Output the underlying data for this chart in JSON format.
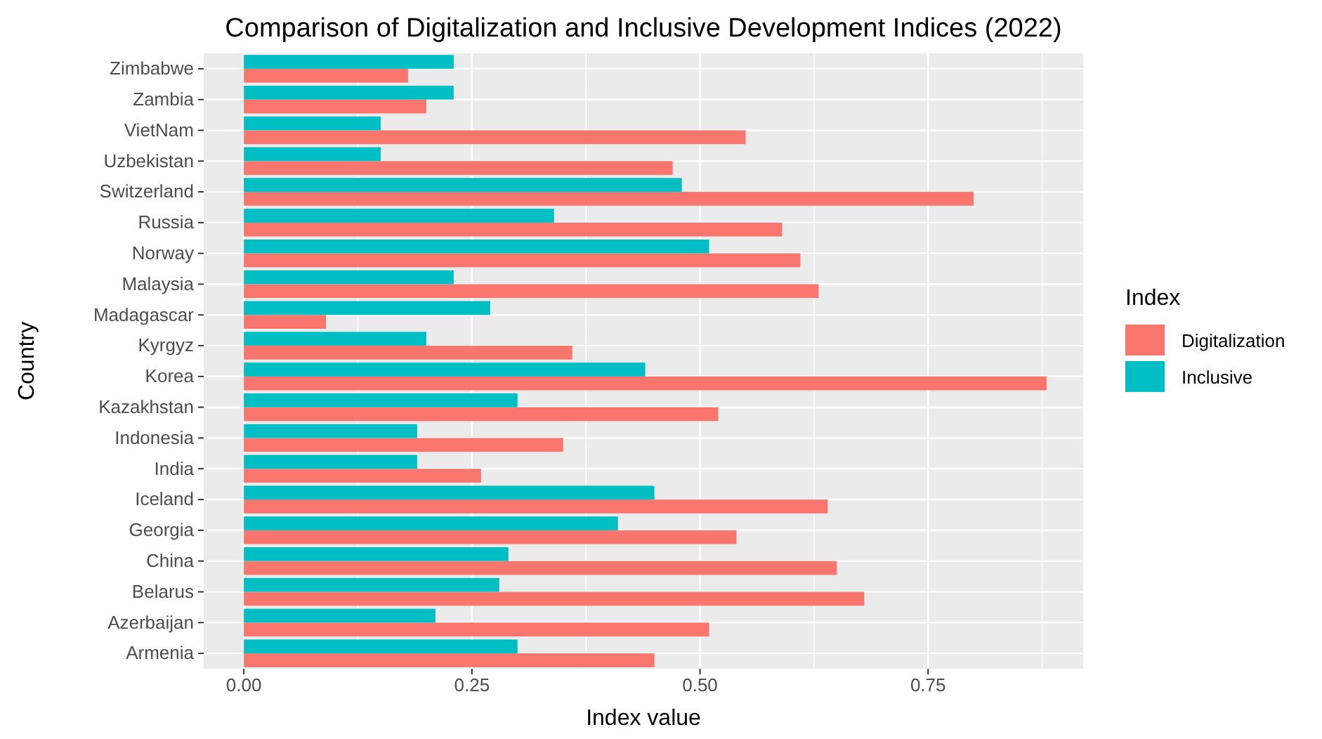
{
  "chart_data": {
    "type": "bar",
    "orientation": "horizontal",
    "title": "Comparison of Digitalization and Inclusive Development Indices (2022)",
    "xlabel": "Index value",
    "ylabel": "Country",
    "legend_title": "Index",
    "legend": "right",
    "grid": true,
    "categories": [
      "Zimbabwe",
      "Zambia",
      "VietNam",
      "Uzbekistan",
      "Switzerland",
      "Russia",
      "Norway",
      "Malaysia",
      "Madagascar",
      "Kyrgyz",
      "Korea",
      "Kazakhstan",
      "Indonesia",
      "India",
      "Iceland",
      "Georgia",
      "China",
      "Belarus",
      "Azerbaijan",
      "Armenia"
    ],
    "series": [
      {
        "name": "Digitalization",
        "color": "#f8766d",
        "values": [
          0.18,
          0.2,
          0.55,
          0.47,
          0.8,
          0.59,
          0.61,
          0.63,
          0.09,
          0.36,
          0.88,
          0.52,
          0.35,
          0.26,
          0.64,
          0.54,
          0.65,
          0.68,
          0.51,
          0.45
        ]
      },
      {
        "name": "Inclusive",
        "color": "#00bfc4",
        "values": [
          0.23,
          0.23,
          0.15,
          0.15,
          0.48,
          0.34,
          0.51,
          0.23,
          0.27,
          0.2,
          0.44,
          0.3,
          0.19,
          0.19,
          0.45,
          0.41,
          0.29,
          0.28,
          0.21,
          0.3
        ]
      }
    ],
    "xlim": [
      -0.044,
      0.92
    ],
    "xticks": [
      {
        "value": 0,
        "label": "0.00"
      },
      {
        "value": 0.25,
        "label": "0.25"
      },
      {
        "value": 0.5,
        "label": "0.50"
      },
      {
        "value": 0.75,
        "label": "0.75"
      }
    ]
  }
}
